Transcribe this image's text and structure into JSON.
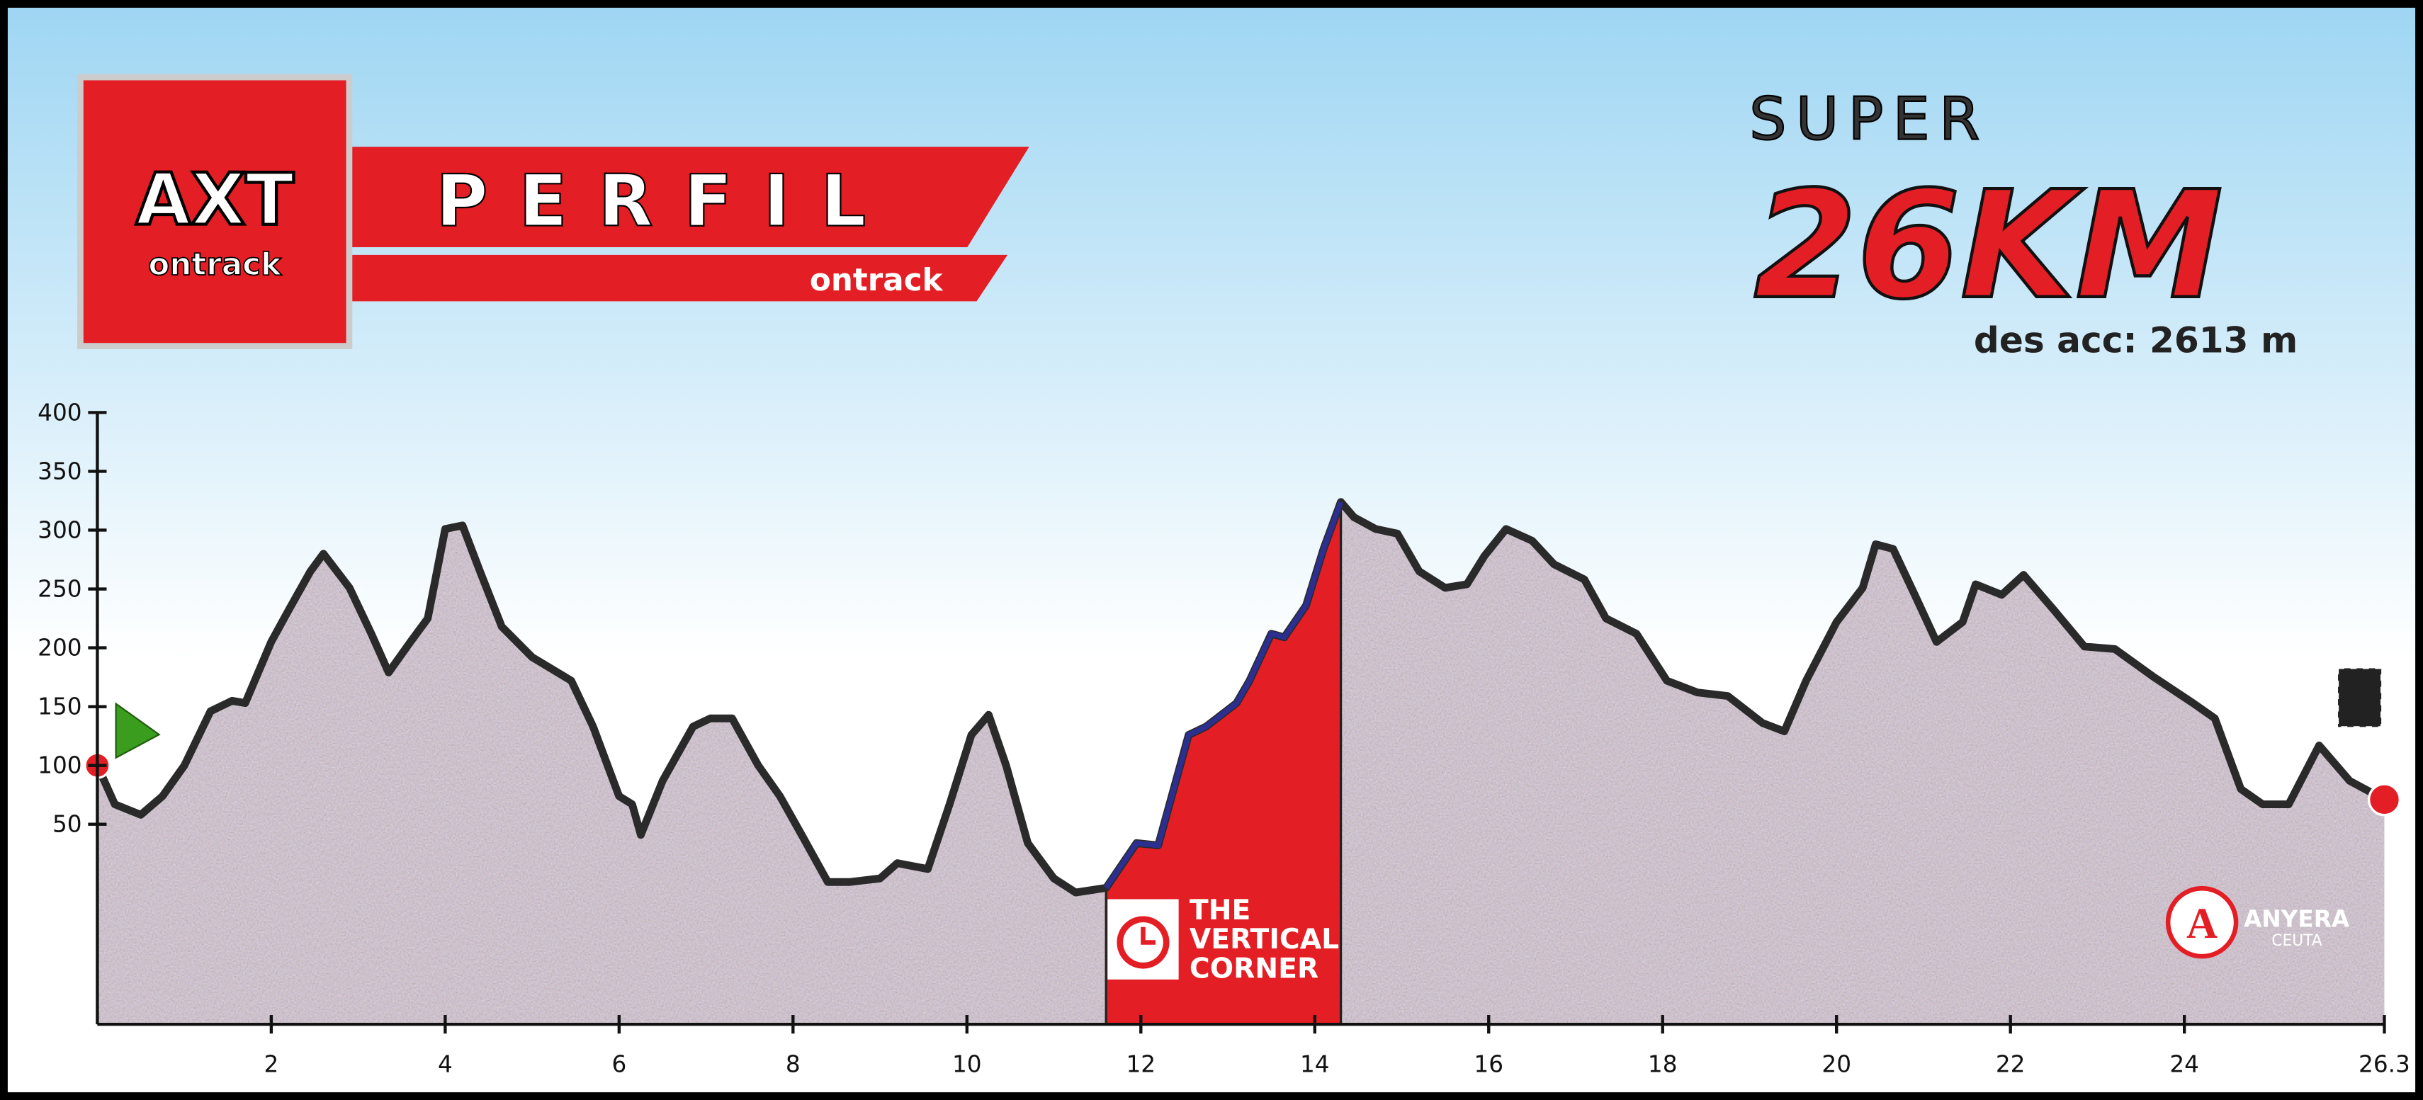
{
  "header": {
    "logo": "AXT",
    "logo_sub": "ontrack",
    "banner": "PERFIL",
    "banner_sub": "ontrack",
    "super": "SUPER",
    "distance": "26KM",
    "ascent": "des acc: 2613 m",
    "club": "ANYERA",
    "club_city": "CEUTA"
  },
  "chart_data": {
    "type": "area",
    "x": [
      0,
      0.2,
      0.5,
      0.75,
      1.0,
      1.3,
      1.55,
      1.7,
      2.0,
      2.2,
      2.45,
      2.6,
      2.9,
      3.15,
      3.35,
      3.6,
      3.8,
      4.0,
      4.2,
      4.4,
      4.65,
      5.0,
      5.45,
      5.7,
      6.0,
      6.15,
      6.25,
      6.5,
      6.85,
      7.05,
      7.3,
      7.6,
      7.85,
      8.1,
      8.4,
      8.65,
      9.0,
      9.2,
      9.55,
      9.8,
      10.05,
      10.25,
      10.45,
      10.7,
      11.0,
      11.25,
      11.6,
      11.95,
      12.2,
      12.55,
      12.75,
      13.1,
      13.25,
      13.5,
      13.65,
      13.9,
      14.1,
      14.3,
      14.45,
      14.7,
      14.95,
      15.2,
      15.5,
      15.75,
      15.95,
      16.2,
      16.5,
      16.75,
      17.1,
      17.35,
      17.7,
      18.05,
      18.4,
      18.75,
      19.15,
      19.4,
      19.65,
      20.0,
      20.3,
      20.45,
      20.65,
      20.9,
      21.15,
      21.45,
      21.6,
      21.9,
      22.15,
      22.5,
      22.85,
      23.2,
      23.65,
      24.1,
      24.35,
      24.65,
      24.9,
      25.2,
      25.55,
      25.9,
      26.3
    ],
    "series": [
      {
        "color": "#2a2a2a",
        "values": [
          100,
          67,
          58,
          74,
          100,
          146,
          155,
          153,
          205,
          232,
          265,
          280,
          251,
          212,
          179,
          205,
          225,
          301,
          304,
          265,
          218,
          192,
          172,
          133,
          74,
          67,
          41,
          87,
          133,
          140,
          140,
          100,
          74,
          41,
          1,
          1,
          4,
          17,
          12,
          67,
          126,
          143,
          100,
          34,
          4,
          -8,
          -4,
          34,
          32,
          126,
          133,
          153,
          172,
          212,
          209,
          236,
          284,
          324,
          311,
          301,
          297,
          265,
          251,
          254,
          278,
          301,
          291,
          271,
          258,
          225,
          212,
          172,
          162,
          159,
          136,
          129,
          172,
          222,
          251,
          288,
          284,
          245,
          205,
          222,
          254,
          245,
          262,
          232,
          201,
          199,
          175,
          153,
          140,
          80,
          67,
          67,
          117,
          87,
          71
        ]
      }
    ],
    "highlight": {
      "x": [
        11.6,
        14.3
      ],
      "color": "#e31e24",
      "line_color": "#2b2f8f",
      "label": [
        "THE",
        "VERTICAL",
        "CORNER"
      ]
    },
    "xlim": [
      0,
      26.3
    ],
    "xticks": [
      2,
      4,
      6,
      8,
      10,
      12,
      14,
      16,
      18,
      20,
      22,
      24,
      26.3
    ],
    "ylim": [
      -120,
      400
    ],
    "yticks": [
      50,
      100,
      150,
      200,
      250,
      300,
      350,
      400
    ]
  }
}
